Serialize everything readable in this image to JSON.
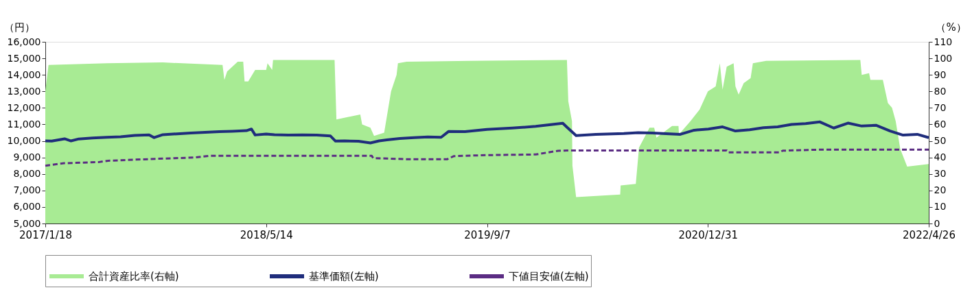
{
  "chart_data": {
    "type": "line",
    "ylabel": "（円）",
    "y2label": "（%）",
    "xlim": [
      "2017-01-18",
      "2022-04-26"
    ],
    "xticks": [
      {
        "value": "2017-01-18",
        "label": "2017/1/18"
      },
      {
        "value": "2018-05-14",
        "label": "2018/5/14"
      },
      {
        "value": "2019-09-07",
        "label": "2019/9/7"
      },
      {
        "value": "2020-12-31",
        "label": "2020/12/31"
      },
      {
        "value": "2022-04-26",
        "label": "2022/4/26"
      }
    ],
    "ylim": [
      5000,
      16000
    ],
    "yticks": [
      {
        "value": 5000,
        "label": "5,000"
      },
      {
        "value": 6000,
        "label": "6,000"
      },
      {
        "value": 7000,
        "label": "7,000"
      },
      {
        "value": 8000,
        "label": "8,000"
      },
      {
        "value": 9000,
        "label": "9,000"
      },
      {
        "value": 10000,
        "label": "10,000"
      },
      {
        "value": 11000,
        "label": "11,000"
      },
      {
        "value": 12000,
        "label": "12,000"
      },
      {
        "value": 13000,
        "label": "13,000"
      },
      {
        "value": 14000,
        "label": "14,000"
      },
      {
        "value": 15000,
        "label": "15,000"
      },
      {
        "value": 16000,
        "label": "16,000"
      }
    ],
    "y2lim": [
      0,
      110
    ],
    "y2ticks": [
      0,
      10,
      20,
      30,
      40,
      50,
      60,
      70,
      80,
      90,
      100,
      110
    ],
    "legend": "bottom",
    "series": [
      {
        "name": "合計資産比率(右軸)",
        "type": "area",
        "axis": "y2",
        "color": "#a8eb94",
        "x": [
          "2017-01-18",
          "2017-01-25",
          "2017-06-01",
          "2017-10-01",
          "2018-02-08",
          "2018-02-12",
          "2018-02-18",
          "2018-03-13",
          "2018-03-25",
          "2018-03-28",
          "2018-04-05",
          "2018-04-20",
          "2018-05-14",
          "2018-05-17",
          "2018-05-27",
          "2018-05-29",
          "2018-10-10",
          "2018-10-14",
          "2018-12-05",
          "2018-12-09",
          "2018-12-27",
          "2019-01-04",
          "2019-01-26",
          "2019-02-10",
          "2019-02-22",
          "2019-02-25",
          "2019-03-16",
          "2019-08-02",
          "2020-02-28",
          "2020-03-02",
          "2020-03-10",
          "2020-03-11",
          "2020-03-19",
          "2020-06-23",
          "2020-06-24",
          "2020-07-27",
          "2020-08-03",
          "2020-08-26",
          "2020-09-05",
          "2020-09-10",
          "2020-10-14",
          "2020-10-28",
          "2020-10-29",
          "2020-11-23",
          "2020-12-13",
          "2020-12-31",
          "2021-01-17",
          "2021-01-26",
          "2021-02-01",
          "2021-02-10",
          "2021-02-25",
          "2021-03-01",
          "2021-03-08",
          "2021-03-19",
          "2021-04-03",
          "2021-04-08",
          "2021-05-07",
          "2021-11-28",
          "2021-12-01",
          "2021-12-17",
          "2021-12-20",
          "2022-01-16",
          "2022-01-27",
          "2022-02-05",
          "2022-02-13",
          "2022-02-23",
          "2022-03-10",
          "2022-04-26"
        ],
        "values": [
          80,
          96,
          97,
          97.5,
          96,
          87,
          92,
          98,
          98,
          86,
          86,
          93,
          93,
          97,
          93,
          99,
          99,
          63,
          66,
          60,
          58,
          53,
          55,
          80,
          90,
          97,
          98,
          98.5,
          99,
          74,
          62,
          35,
          16,
          17.5,
          23,
          24,
          46,
          58,
          58,
          52,
          59,
          59,
          54,
          62,
          69,
          80,
          83,
          97,
          81,
          95,
          97,
          83,
          78,
          85,
          88,
          97,
          98.5,
          99,
          90,
          91,
          87,
          87,
          73,
          70,
          62,
          45,
          34.5,
          36
        ]
      },
      {
        "name": "基準価額(左軸)",
        "axis": "y",
        "color": "#1f2d7c",
        "line_style": "solid",
        "x": [
          "2017-01-18",
          "2017-02-01",
          "2017-03-01",
          "2017-03-15",
          "2017-04-01",
          "2017-05-01",
          "2017-06-01",
          "2017-07-01",
          "2017-08-01",
          "2017-09-01",
          "2017-09-12",
          "2017-10-01",
          "2017-11-01",
          "2017-12-01",
          "2018-01-01",
          "2018-02-01",
          "2018-03-01",
          "2018-04-01",
          "2018-04-12",
          "2018-04-20",
          "2018-05-14",
          "2018-06-01",
          "2018-07-01",
          "2018-08-01",
          "2018-09-01",
          "2018-10-01",
          "2018-10-12",
          "2018-11-01",
          "2018-12-01",
          "2018-12-27",
          "2019-01-15",
          "2019-02-01",
          "2019-03-01",
          "2019-04-01",
          "2019-05-01",
          "2019-05-30",
          "2019-06-15",
          "2019-07-21",
          "2019-09-07",
          "2019-11-01",
          "2019-12-22",
          "2020-02-19",
          "2020-02-28",
          "2020-03-19",
          "2020-05-01",
          "2020-07-01",
          "2020-08-01",
          "2020-09-01",
          "2020-10-01",
          "2020-11-01",
          "2020-12-01",
          "2021-01-01",
          "2021-02-01",
          "2021-03-01",
          "2021-04-01",
          "2021-05-01",
          "2021-06-01",
          "2021-07-01",
          "2021-08-01",
          "2021-09-01",
          "2021-10-01",
          "2021-11-01",
          "2021-12-01",
          "2022-01-01",
          "2022-02-01",
          "2022-03-01",
          "2022-04-01",
          "2022-04-26"
        ],
        "values": [
          10000,
          9990,
          10130,
          10000,
          10120,
          10180,
          10220,
          10250,
          10330,
          10370,
          10200,
          10380,
          10430,
          10480,
          10520,
          10560,
          10580,
          10620,
          10720,
          10360,
          10420,
          10380,
          10350,
          10370,
          10350,
          10300,
          9990,
          10000,
          9980,
          9880,
          10000,
          10060,
          10150,
          10200,
          10240,
          10220,
          10570,
          10560,
          10700,
          10780,
          10880,
          11070,
          10830,
          10320,
          10400,
          10450,
          10500,
          10480,
          10440,
          10400,
          10650,
          10720,
          10850,
          10600,
          10680,
          10800,
          10850,
          11000,
          11050,
          11150,
          10780,
          11080,
          10900,
          10950,
          10600,
          10350,
          10400,
          10200
        ]
      },
      {
        "name": "下値目安値(左軸)",
        "axis": "y",
        "color": "#5b2c83",
        "line_style": "dashed",
        "x": [
          "2017-01-18",
          "2017-02-28",
          "2017-05-15",
          "2017-06-04",
          "2017-09-02",
          "2017-12-11",
          "2018-01-10",
          "2018-12-30",
          "2019-01-02",
          "2019-03-20",
          "2019-06-12",
          "2019-06-27",
          "2019-09-07",
          "2019-12-22",
          "2020-02-08",
          "2020-02-28",
          "2021-02-10",
          "2021-02-13",
          "2021-06-05",
          "2021-06-12",
          "2021-08-30",
          "2022-04-26"
        ],
        "values": [
          8500,
          8650,
          8720,
          8800,
          8900,
          9000,
          9100,
          9100,
          8960,
          8890,
          8890,
          9080,
          9140,
          9180,
          9400,
          9420,
          9420,
          9310,
          9310,
          9410,
          9470,
          9470
        ]
      }
    ]
  }
}
